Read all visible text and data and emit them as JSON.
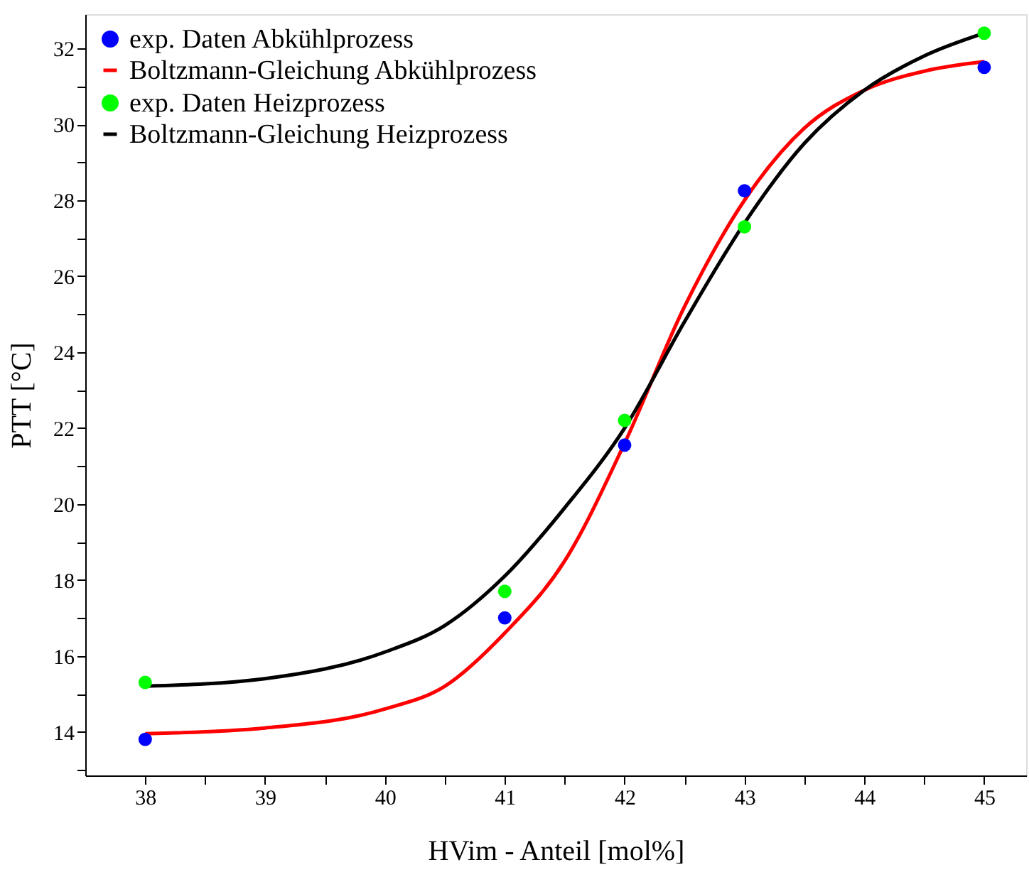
{
  "chart_data": {
    "type": "scatter",
    "xlabel": "HVim - Anteil [mol%]",
    "ylabel": "PTT [°C]",
    "x": [
      38,
      41,
      42,
      43,
      45
    ],
    "xlim": [
      37.5,
      45.35
    ],
    "ylim": [
      12.85,
      32.9
    ],
    "xticks": [
      38,
      {
        "value": 38.5,
        "label": null
      },
      39,
      {
        "value": 39.5,
        "label": null
      },
      40,
      {
        "value": 40.5,
        "label": null
      },
      41,
      {
        "value": 41.5,
        "label": null
      },
      42,
      {
        "value": 42.5,
        "label": null
      },
      43,
      {
        "value": 43.5,
        "label": null
      },
      44,
      {
        "value": 44.5,
        "label": null
      },
      45
    ],
    "yticks": [
      {
        "value": 13,
        "label": null
      },
      14,
      {
        "value": 15,
        "label": null
      },
      16,
      {
        "value": 17,
        "label": null
      },
      18,
      {
        "value": 19,
        "label": null
      },
      20,
      {
        "value": 21,
        "label": null
      },
      22,
      {
        "value": 23,
        "label": null
      },
      24,
      {
        "value": 25,
        "label": null
      },
      26,
      {
        "value": 27,
        "label": null
      },
      28,
      {
        "value": 29,
        "label": null
      },
      30,
      {
        "value": 31,
        "label": null
      },
      32
    ],
    "grid": false,
    "legend": "top left",
    "series": [
      {
        "name": "exp. Daten Abkühlprozess",
        "color": "#0000ff",
        "marker": "circle",
        "values": [
          13.8,
          17.0,
          21.55,
          28.25,
          31.5
        ]
      },
      {
        "name": "Boltzmann-Gleichung Abkühlprozess",
        "color": "#ff0000",
        "type": "line",
        "marker": "none",
        "line_style": "solid",
        "x": [
          38,
          39,
          40,
          40.5,
          41,
          41.5,
          42,
          42.5,
          43,
          43.5,
          44,
          44.5,
          45
        ],
        "values": [
          13.95,
          14.1,
          14.6,
          15.2,
          16.6,
          18.5,
          21.6,
          25.2,
          28.0,
          29.9,
          30.9,
          31.4,
          31.65
        ]
      },
      {
        "name": "exp. Daten Heizprozess",
        "color": "#00ff00",
        "marker": "circle",
        "values": [
          15.3,
          17.7,
          22.2,
          27.3,
          32.4
        ]
      },
      {
        "name": "Boltzmann-Gleichung Heizprozess",
        "color": "#000000",
        "type": "line",
        "marker": "none",
        "line_style": "solid",
        "x": [
          38,
          39,
          40,
          40.5,
          41,
          41.5,
          42,
          42.5,
          43,
          43.5,
          44,
          44.5,
          45
        ],
        "values": [
          15.2,
          15.4,
          16.1,
          16.8,
          18.1,
          19.9,
          22.0,
          24.8,
          27.4,
          29.5,
          30.9,
          31.8,
          32.4
        ]
      }
    ]
  }
}
